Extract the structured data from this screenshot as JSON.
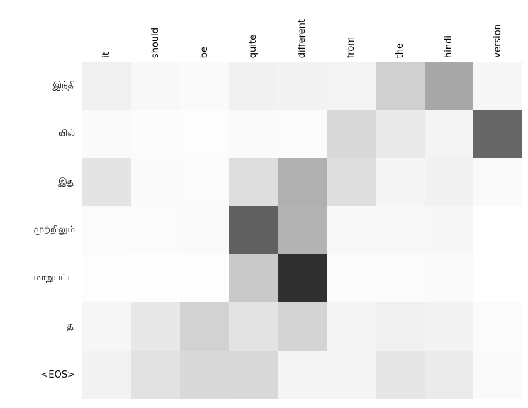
{
  "figure": {
    "background": "#ffffff",
    "text_color": "#000000"
  },
  "chart_data": {
    "type": "heatmap",
    "title": "",
    "xlabel": "",
    "ylabel": "",
    "x_axis_position": "top",
    "y_axis_position": "left",
    "x_tick_rotation_deg": 90,
    "grid": "off",
    "legend": "none",
    "colormap": "Greys",
    "color_scale": {
      "low_value_color": "#ffffff",
      "high_value_color": "#000000"
    },
    "x_labels": [
      "it",
      "should",
      "be",
      "quite",
      "different",
      "from",
      "the",
      "hindi",
      "version"
    ],
    "y_labels": [
      "இந்தி",
      "யில்",
      "இது",
      "முற்றிலும்",
      "மாறுபட்ட",
      "து",
      "<EOS>"
    ],
    "values": [
      [
        0.06,
        0.03,
        0.02,
        0.06,
        0.05,
        0.04,
        0.18,
        0.33,
        0.04
      ],
      [
        0.02,
        0.01,
        0.01,
        0.02,
        0.02,
        0.15,
        0.09,
        0.04,
        0.6
      ],
      [
        0.11,
        0.02,
        0.02,
        0.13,
        0.31,
        0.13,
        0.04,
        0.06,
        0.02
      ],
      [
        0.02,
        0.02,
        0.02,
        0.62,
        0.3,
        0.03,
        0.03,
        0.03,
        0.0
      ],
      [
        0.01,
        0.0,
        0.01,
        0.21,
        0.81,
        0.02,
        0.02,
        0.02,
        0.0
      ],
      [
        0.04,
        0.09,
        0.18,
        0.11,
        0.17,
        0.04,
        0.06,
        0.05,
        0.02
      ],
      [
        0.05,
        0.11,
        0.15,
        0.15,
        0.04,
        0.04,
        0.1,
        0.08,
        0.02
      ]
    ],
    "cell_colors": [
      [
        "#f0f0f0",
        "#f8f8f8",
        "#fafafa",
        "#f1f1f1",
        "#f3f3f3",
        "#f4f4f4",
        "#d0d0d0",
        "#a8a8a8",
        "#f6f6f6"
      ],
      [
        "#fafafa",
        "#fcfcfc",
        "#fdfdfd",
        "#fafafa",
        "#fbfbfb",
        "#d9d9d9",
        "#e9e9e9",
        "#f4f4f4",
        "#666666"
      ],
      [
        "#e4e4e4",
        "#fafafa",
        "#fbfbfb",
        "#dedede",
        "#b0b0b0",
        "#dedede",
        "#f5f5f5",
        "#f1f1f1",
        "#fafafa"
      ],
      [
        "#fbfbfb",
        "#fbfbfb",
        "#fafafa",
        "#616161",
        "#b3b3b3",
        "#f8f8f8",
        "#f8f8f8",
        "#f7f7f7",
        "#ffffff"
      ],
      [
        "#fdfdfd",
        "#fefefe",
        "#fdfdfd",
        "#c9c9c9",
        "#303030",
        "#fbfbfb",
        "#fbfbfb",
        "#fafafa",
        "#ffffff"
      ],
      [
        "#f6f6f6",
        "#e8e8e8",
        "#d2d2d2",
        "#e3e3e3",
        "#d4d4d4",
        "#f4f4f4",
        "#f0f0f0",
        "#f3f3f3",
        "#fbfbfb"
      ],
      [
        "#f2f2f2",
        "#e2e2e2",
        "#d9d9d9",
        "#d8d8d8",
        "#f4f4f4",
        "#f5f5f5",
        "#e6e6e6",
        "#ebebeb",
        "#fafafa"
      ]
    ]
  }
}
